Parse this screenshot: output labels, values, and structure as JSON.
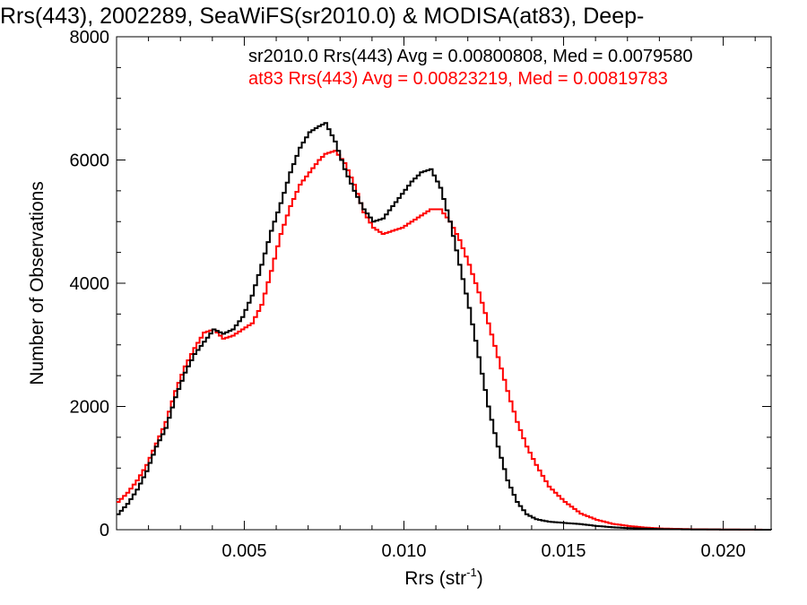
{
  "chart_data": {
    "type": "line",
    "title": "Rrs(443), 2002289, SeaWiFS(sr2010.0) & MODISA(at83), Deep-",
    "xlabel": "Rrs (str",
    "xlabel_sup": "-1",
    "xlabel_close": ")",
    "ylabel": "Number of Observations",
    "xlim": [
      0.001,
      0.0215
    ],
    "ylim": [
      0,
      8000
    ],
    "xticks": [
      0.005,
      0.01,
      0.015,
      0.02
    ],
    "xtick_labels": [
      "0.005",
      "0.010",
      "0.015",
      "0.020"
    ],
    "yticks": [
      0,
      2000,
      4000,
      6000,
      8000
    ],
    "ytick_labels": [
      "0",
      "2000",
      "4000",
      "6000",
      "8000"
    ],
    "grid": false,
    "legend_position": "top-right",
    "series": [
      {
        "name": "sr2010.0 Rrs(443) Avg = 0.00800808, Med = 0.0079580",
        "color": "#000000",
        "points": [
          [
            0.001,
            250
          ],
          [
            0.0013,
            420
          ],
          [
            0.0016,
            650
          ],
          [
            0.0019,
            950
          ],
          [
            0.0022,
            1350
          ],
          [
            0.0025,
            1650
          ],
          [
            0.0028,
            2150
          ],
          [
            0.0031,
            2550
          ],
          [
            0.0034,
            2850
          ],
          [
            0.0037,
            3050
          ],
          [
            0.004,
            3250
          ],
          [
            0.0043,
            3180
          ],
          [
            0.0046,
            3250
          ],
          [
            0.0049,
            3450
          ],
          [
            0.0052,
            3800
          ],
          [
            0.0055,
            4300
          ],
          [
            0.0058,
            4850
          ],
          [
            0.0061,
            5300
          ],
          [
            0.0064,
            5800
          ],
          [
            0.0067,
            6200
          ],
          [
            0.007,
            6450
          ],
          [
            0.0073,
            6550
          ],
          [
            0.0075,
            6600
          ],
          [
            0.0078,
            6300
          ],
          [
            0.0081,
            5850
          ],
          [
            0.0084,
            5500
          ],
          [
            0.0087,
            5200
          ],
          [
            0.009,
            5000
          ],
          [
            0.0093,
            5050
          ],
          [
            0.0096,
            5250
          ],
          [
            0.0099,
            5450
          ],
          [
            0.0102,
            5650
          ],
          [
            0.0105,
            5800
          ],
          [
            0.0108,
            5850
          ],
          [
            0.0111,
            5550
          ],
          [
            0.0114,
            5000
          ],
          [
            0.0117,
            4300
          ],
          [
            0.012,
            3600
          ],
          [
            0.0123,
            2800
          ],
          [
            0.0126,
            2000
          ],
          [
            0.0129,
            1350
          ],
          [
            0.0132,
            800
          ],
          [
            0.0135,
            450
          ],
          [
            0.0138,
            250
          ],
          [
            0.0141,
            170
          ],
          [
            0.0145,
            130
          ],
          [
            0.015,
            110
          ],
          [
            0.0155,
            90
          ],
          [
            0.016,
            60
          ],
          [
            0.0165,
            40
          ],
          [
            0.017,
            25
          ],
          [
            0.018,
            10
          ],
          [
            0.019,
            4
          ],
          [
            0.0215,
            0
          ]
        ]
      },
      {
        "name": "at83 Rrs(443) Avg = 0.00823219, Med = 0.00819783",
        "color": "#ff0000",
        "points": [
          [
            0.001,
            450
          ],
          [
            0.0013,
            600
          ],
          [
            0.0016,
            800
          ],
          [
            0.0019,
            1050
          ],
          [
            0.0022,
            1400
          ],
          [
            0.0025,
            1750
          ],
          [
            0.0028,
            2250
          ],
          [
            0.0031,
            2650
          ],
          [
            0.0034,
            2950
          ],
          [
            0.0037,
            3200
          ],
          [
            0.004,
            3250
          ],
          [
            0.0043,
            3100
          ],
          [
            0.0046,
            3150
          ],
          [
            0.0049,
            3250
          ],
          [
            0.0052,
            3350
          ],
          [
            0.0055,
            3650
          ],
          [
            0.0058,
            4200
          ],
          [
            0.0061,
            4800
          ],
          [
            0.0064,
            5250
          ],
          [
            0.0067,
            5600
          ],
          [
            0.007,
            5800
          ],
          [
            0.0073,
            6000
          ],
          [
            0.0075,
            6100
          ],
          [
            0.0078,
            6150
          ],
          [
            0.0081,
            5950
          ],
          [
            0.0084,
            5600
          ],
          [
            0.0087,
            5150
          ],
          [
            0.009,
            4900
          ],
          [
            0.0093,
            4800
          ],
          [
            0.0096,
            4850
          ],
          [
            0.0099,
            4900
          ],
          [
            0.0102,
            5000
          ],
          [
            0.0105,
            5100
          ],
          [
            0.0108,
            5200
          ],
          [
            0.0111,
            5200
          ],
          [
            0.0114,
            5000
          ],
          [
            0.0117,
            4700
          ],
          [
            0.012,
            4300
          ],
          [
            0.0123,
            3850
          ],
          [
            0.0126,
            3350
          ],
          [
            0.0129,
            2800
          ],
          [
            0.0132,
            2250
          ],
          [
            0.0135,
            1750
          ],
          [
            0.0138,
            1350
          ],
          [
            0.0141,
            1050
          ],
          [
            0.0145,
            700
          ],
          [
            0.015,
            450
          ],
          [
            0.0155,
            260
          ],
          [
            0.016,
            160
          ],
          [
            0.0165,
            95
          ],
          [
            0.017,
            60
          ],
          [
            0.0175,
            35
          ],
          [
            0.018,
            20
          ],
          [
            0.019,
            8
          ],
          [
            0.02,
            4
          ],
          [
            0.0215,
            0
          ]
        ]
      }
    ]
  }
}
